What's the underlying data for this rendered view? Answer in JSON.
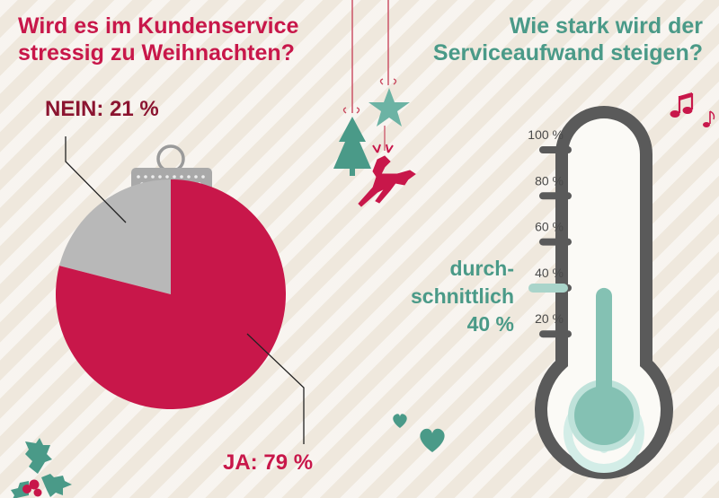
{
  "left_title": [
    "Wird es im Kundenservice",
    "stressig zu Weihnachten?"
  ],
  "right_title": [
    "Wie stark wird der",
    "Serviceaufwand steigen?"
  ],
  "colors": {
    "crimson": "#c8174a",
    "dark_red": "#8b1430",
    "teal": "#4a9a88",
    "silver": "#b8b8b8",
    "thermo_frame": "#5a5a5a"
  },
  "chart_data": [
    {
      "type": "pie",
      "title": "Wird es im Kundenservice stressig zu Weihnachten?",
      "slices": [
        {
          "label": "NEIN: 21 %",
          "value": 21,
          "color": "#b8b8b8"
        },
        {
          "label": "JA: 79 %",
          "value": 79,
          "color": "#c8174a"
        }
      ]
    },
    {
      "type": "gauge",
      "title": "Wie stark wird der Serviceaufwand steigen?",
      "scale": {
        "min": 0,
        "max": 100,
        "ticks": [
          "20 %",
          "40 %",
          "60 %",
          "80 %",
          "100 %"
        ]
      },
      "value": 40,
      "annotation": [
        "durch-",
        "schnittlich",
        "40 %"
      ]
    }
  ]
}
